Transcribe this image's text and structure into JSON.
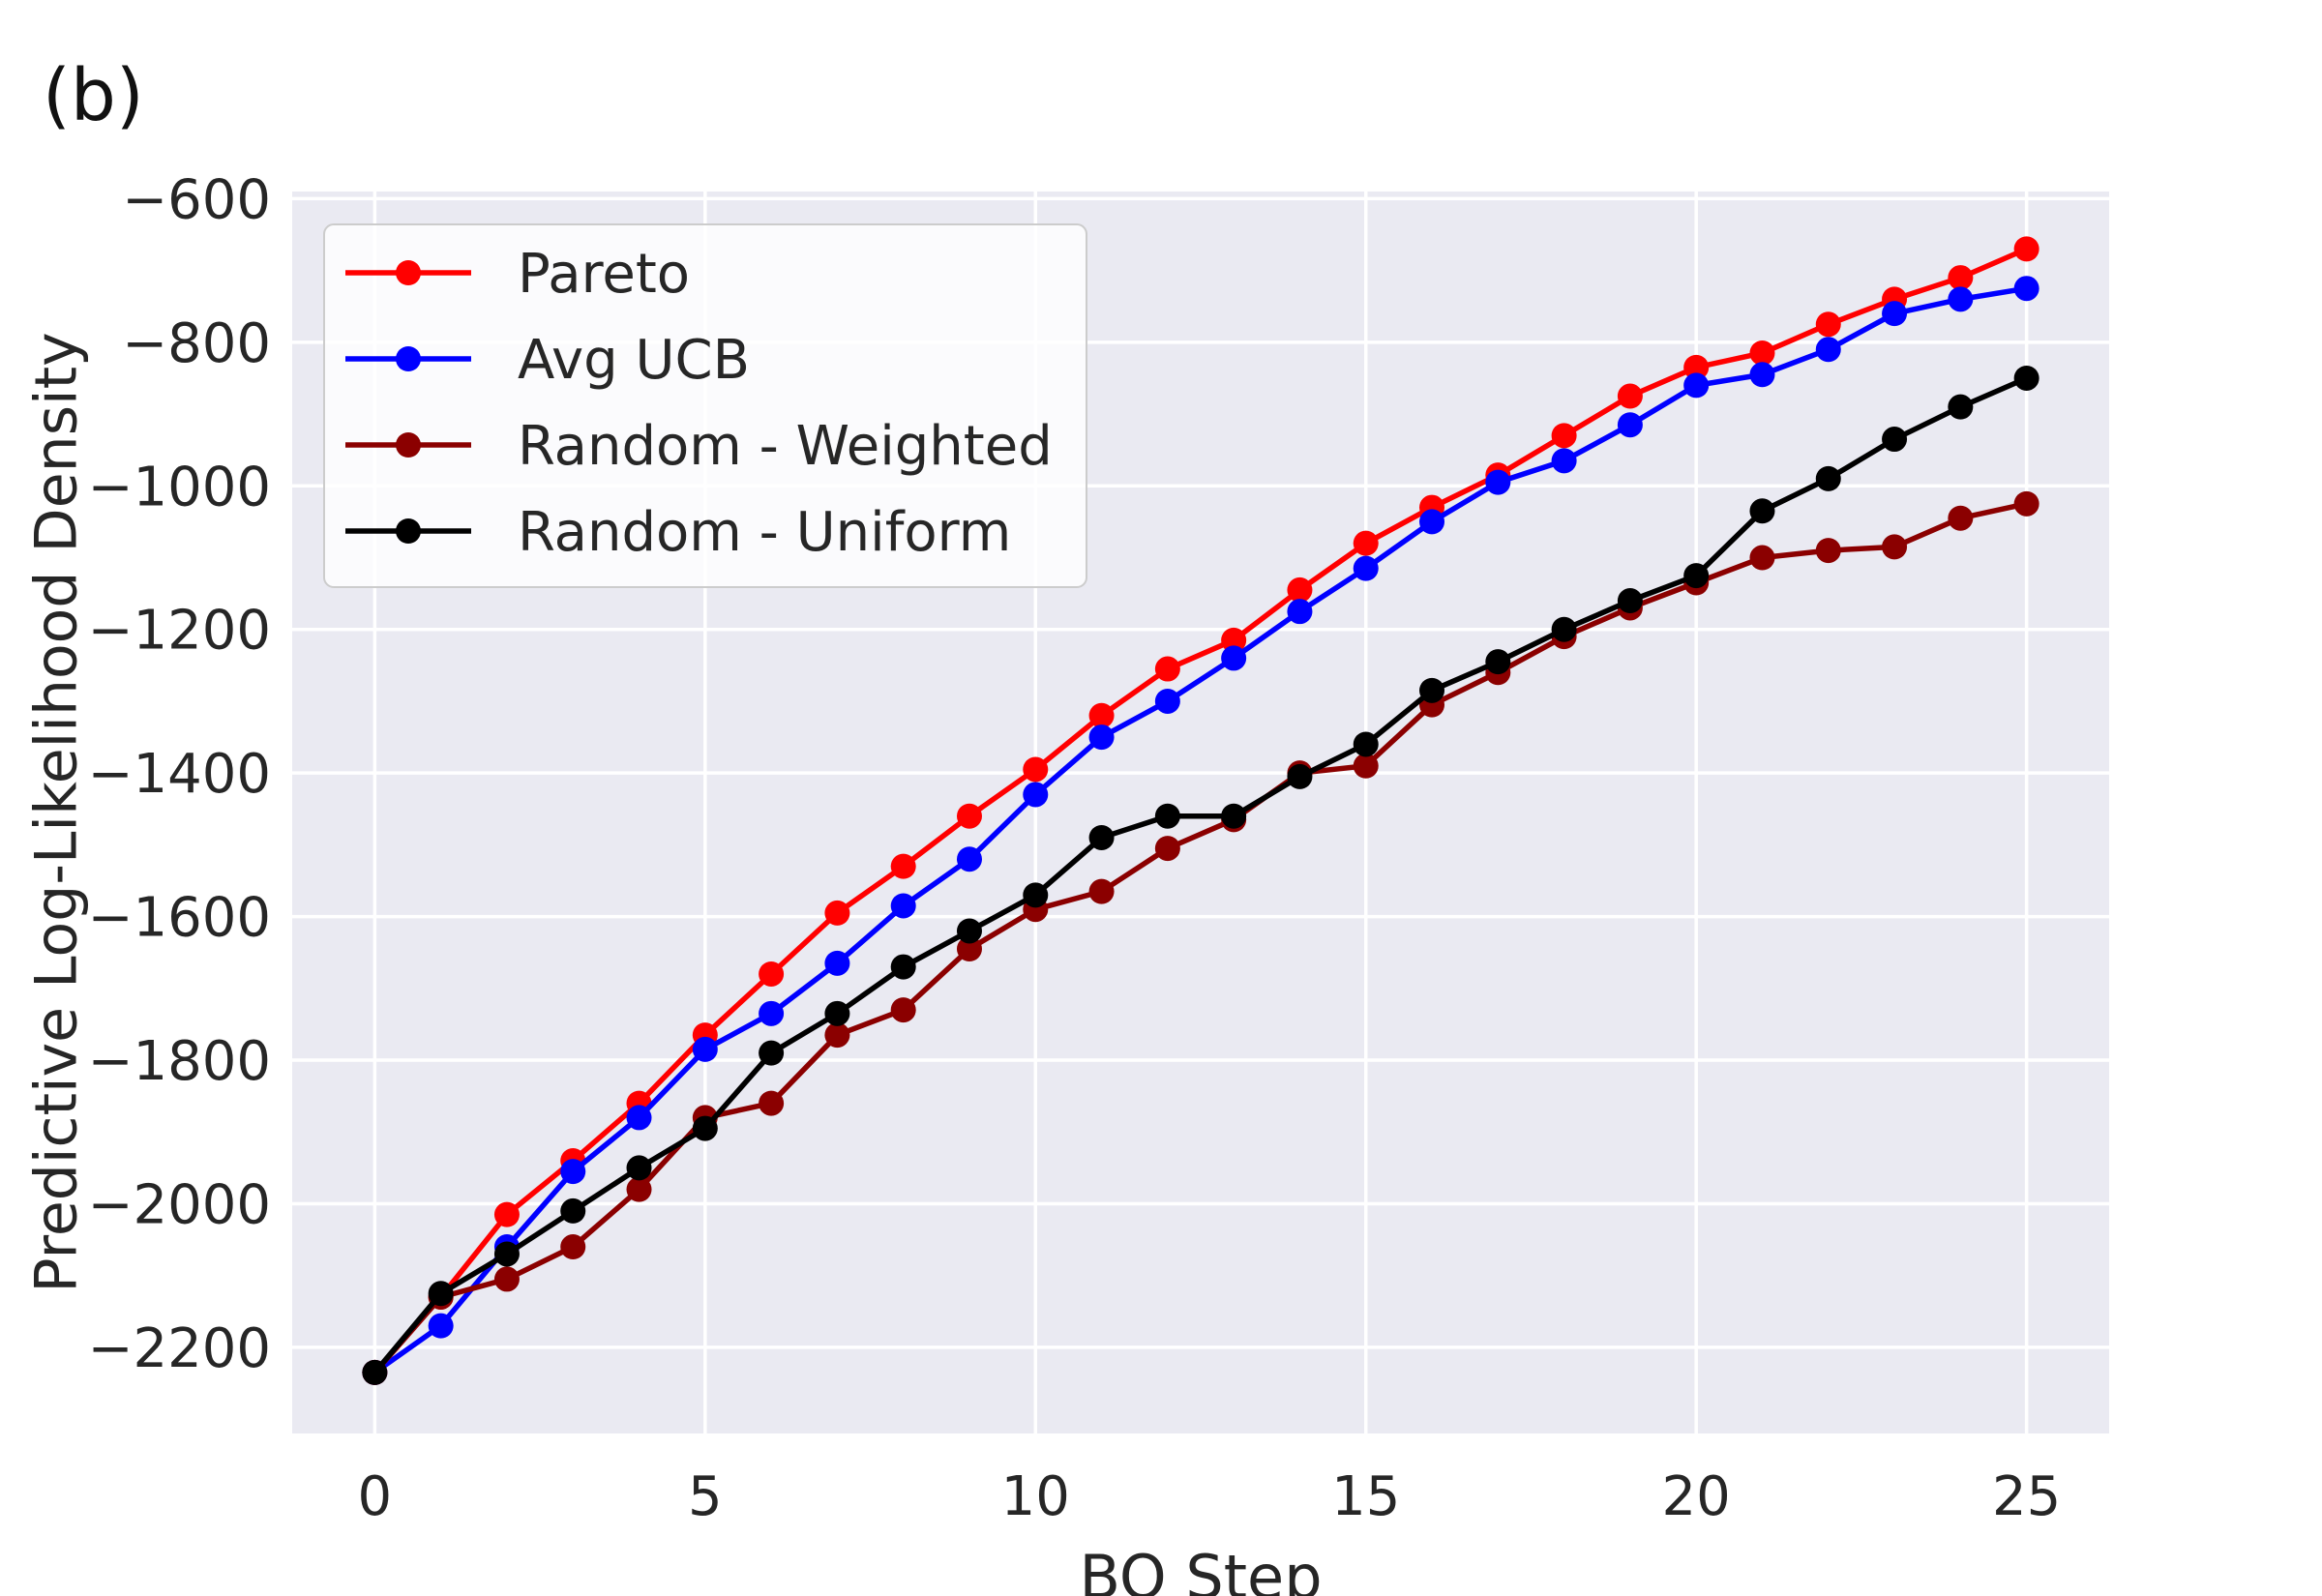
{
  "panel_label": "(b)",
  "chart_data": {
    "type": "line",
    "title": "",
    "xlabel": "BO Step",
    "ylabel": "Predictive Log-Likelihood Density",
    "xlim": [
      -1.25,
      26.25
    ],
    "ylim": [
      -2320,
      -590
    ],
    "xticks": [
      0,
      5,
      10,
      15,
      20,
      25
    ],
    "xtick_labels": [
      "0",
      "5",
      "10",
      "15",
      "20",
      "25"
    ],
    "yticks": [
      -2200,
      -2000,
      -1800,
      -1600,
      -1400,
      -1200,
      -1000,
      -800,
      -600
    ],
    "ytick_labels": [
      "−2200",
      "−2000",
      "−1800",
      "−1600",
      "−1400",
      "−1200",
      "−1000",
      "−800",
      "−600"
    ],
    "grid": true,
    "legend_position": "top-left",
    "plot_background": "#eaeaf2",
    "x": [
      0,
      1,
      2,
      3,
      4,
      5,
      6,
      7,
      8,
      9,
      10,
      11,
      12,
      13,
      14,
      15,
      16,
      17,
      18,
      19,
      20,
      21,
      22,
      23,
      24,
      25
    ],
    "series": [
      {
        "name": "Pareto",
        "color": "#ff0000",
        "values": [
          -2235,
          -2130,
          -2015,
          -1940,
          -1860,
          -1765,
          -1680,
          -1595,
          -1530,
          -1460,
          -1395,
          -1320,
          -1255,
          -1215,
          -1145,
          -1080,
          -1030,
          -985,
          -930,
          -875,
          -835,
          -815,
          -775,
          -740,
          -710,
          -670
        ]
      },
      {
        "name": "Avg UCB",
        "color": "#0000ff",
        "values": [
          -2235,
          -2170,
          -2060,
          -1955,
          -1880,
          -1785,
          -1735,
          -1665,
          -1585,
          -1520,
          -1430,
          -1350,
          -1300,
          -1240,
          -1175,
          -1115,
          -1050,
          -995,
          -965,
          -915,
          -860,
          -845,
          -810,
          -760,
          -740,
          -725
        ]
      },
      {
        "name": "Random - Weighted",
        "color": "#8b0000",
        "values": [
          -2235,
          -2130,
          -2105,
          -2060,
          -1980,
          -1880,
          -1860,
          -1765,
          -1730,
          -1645,
          -1590,
          -1565,
          -1505,
          -1465,
          -1400,
          -1390,
          -1305,
          -1260,
          -1210,
          -1170,
          -1135,
          -1100,
          -1090,
          -1085,
          -1045,
          -1025
        ]
      },
      {
        "name": "Random - Uniform",
        "color": "#000000",
        "values": [
          -2235,
          -2125,
          -2070,
          -2010,
          -1950,
          -1895,
          -1790,
          -1735,
          -1670,
          -1620,
          -1570,
          -1490,
          -1460,
          -1460,
          -1405,
          -1360,
          -1285,
          -1245,
          -1200,
          -1160,
          -1125,
          -1035,
          -990,
          -935,
          -890,
          -850
        ]
      }
    ]
  }
}
